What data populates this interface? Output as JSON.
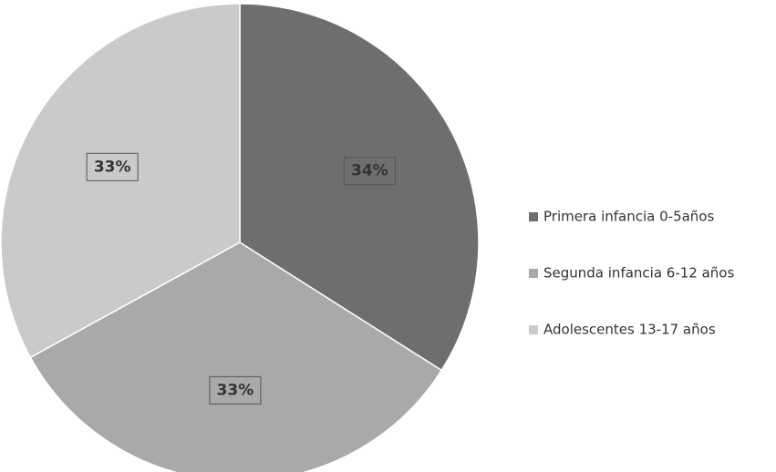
{
  "chart_data": {
    "type": "pie",
    "categories": [
      "Primera infancia 0-5años",
      "Segunda infancia 6-12 años",
      "Adolescentes 13-17 años"
    ],
    "values": [
      34,
      33,
      33
    ],
    "value_labels": [
      "34%",
      "33%",
      "33%"
    ],
    "colors": [
      "#6e6e6e",
      "#a9a9a9",
      "#cacaca"
    ],
    "legend": "right"
  }
}
